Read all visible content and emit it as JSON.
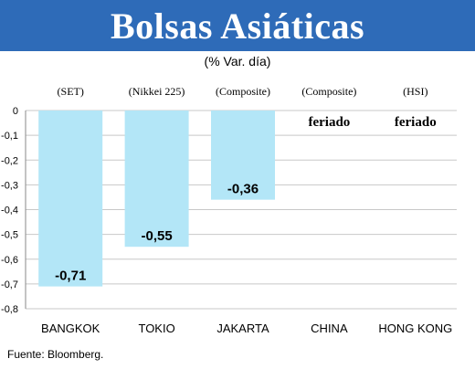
{
  "chart_data": {
    "type": "bar",
    "title": "Bolsas Asiáticas",
    "subtitle": "(% Var. día)",
    "categories": [
      "BANGKOK",
      "TOKIO",
      "JAKARTA",
      "CHINA",
      "HONG KONG"
    ],
    "indices": [
      "(SET)",
      "(Nikkei 225)",
      "(Composite)",
      "(Composite)",
      "(HSI)"
    ],
    "values": [
      -0.71,
      -0.55,
      -0.36,
      null,
      null
    ],
    "value_labels": [
      "-0,71",
      "-0,55",
      "-0,36",
      "feriado",
      "feriado"
    ],
    "y_ticks": [
      "0",
      "-0,1",
      "-0,2",
      "-0,3",
      "-0,4",
      "-0,5",
      "-0,6",
      "-0,7",
      "-0,8"
    ],
    "ylim": [
      -0.8,
      0
    ],
    "grid": true,
    "bar_color": "#b3e6f7",
    "source": "Fuente: Bloomberg."
  },
  "colors": {
    "title_bar": "#2e6bb8",
    "grid": "#c8c8c8",
    "bar": "#b3e6f7"
  }
}
